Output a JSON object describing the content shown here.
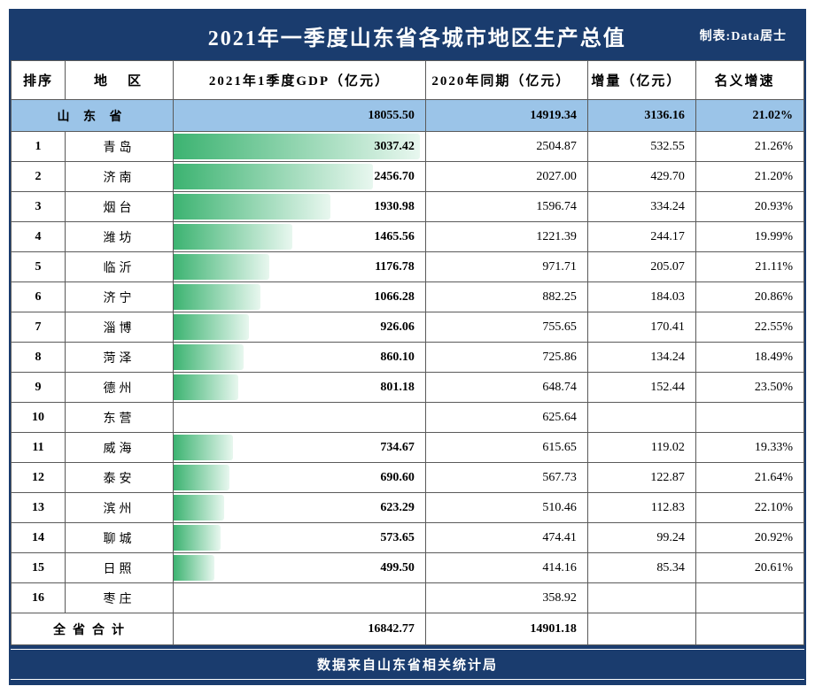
{
  "title": "2021年一季度山东省各城市地区生产总值",
  "credit": "制表:Data居士",
  "headers": {
    "rank": "排序",
    "region": "地　区",
    "gdp2021": "2021年1季度GDP（亿元）",
    "gdp2020": "2020年同期（亿元）",
    "increment": "增量（亿元）",
    "rate": "名义增速"
  },
  "province_row": {
    "region": "山 东 省",
    "gdp2021": "18055.50",
    "gdp2020": "14919.34",
    "increment": "3136.16",
    "rate": "21.02%"
  },
  "max_bar_value": 3100,
  "bar_gradient": {
    "from": "#3cb371",
    "to": "#e8f7ef"
  },
  "rows": [
    {
      "rank": "1",
      "region": "青岛",
      "gdp2021": "3037.42",
      "gdp2021_num": 3037.42,
      "gdp2020": "2504.87",
      "increment": "532.55",
      "rate": "21.26%"
    },
    {
      "rank": "2",
      "region": "济南",
      "gdp2021": "2456.70",
      "gdp2021_num": 2456.7,
      "gdp2020": "2027.00",
      "increment": "429.70",
      "rate": "21.20%"
    },
    {
      "rank": "3",
      "region": "烟台",
      "gdp2021": "1930.98",
      "gdp2021_num": 1930.98,
      "gdp2020": "1596.74",
      "increment": "334.24",
      "rate": "20.93%"
    },
    {
      "rank": "4",
      "region": "潍坊",
      "gdp2021": "1465.56",
      "gdp2021_num": 1465.56,
      "gdp2020": "1221.39",
      "increment": "244.17",
      "rate": "19.99%"
    },
    {
      "rank": "5",
      "region": "临沂",
      "gdp2021": "1176.78",
      "gdp2021_num": 1176.78,
      "gdp2020": "971.71",
      "increment": "205.07",
      "rate": "21.11%"
    },
    {
      "rank": "6",
      "region": "济宁",
      "gdp2021": "1066.28",
      "gdp2021_num": 1066.28,
      "gdp2020": "882.25",
      "increment": "184.03",
      "rate": "20.86%"
    },
    {
      "rank": "7",
      "region": "淄博",
      "gdp2021": "926.06",
      "gdp2021_num": 926.06,
      "gdp2020": "755.65",
      "increment": "170.41",
      "rate": "22.55%"
    },
    {
      "rank": "8",
      "region": "菏泽",
      "gdp2021": "860.10",
      "gdp2021_num": 860.1,
      "gdp2020": "725.86",
      "increment": "134.24",
      "rate": "18.49%"
    },
    {
      "rank": "9",
      "region": "德州",
      "gdp2021": "801.18",
      "gdp2021_num": 801.18,
      "gdp2020": "648.74",
      "increment": "152.44",
      "rate": "23.50%"
    },
    {
      "rank": "10",
      "region": "东营",
      "gdp2021": "",
      "gdp2021_num": null,
      "gdp2020": "625.64",
      "increment": "",
      "rate": ""
    },
    {
      "rank": "11",
      "region": "威海",
      "gdp2021": "734.67",
      "gdp2021_num": 734.67,
      "gdp2020": "615.65",
      "increment": "119.02",
      "rate": "19.33%"
    },
    {
      "rank": "12",
      "region": "泰安",
      "gdp2021": "690.60",
      "gdp2021_num": 690.6,
      "gdp2020": "567.73",
      "increment": "122.87",
      "rate": "21.64%"
    },
    {
      "rank": "13",
      "region": "滨州",
      "gdp2021": "623.29",
      "gdp2021_num": 623.29,
      "gdp2020": "510.46",
      "increment": "112.83",
      "rate": "22.10%"
    },
    {
      "rank": "14",
      "region": "聊城",
      "gdp2021": "573.65",
      "gdp2021_num": 573.65,
      "gdp2020": "474.41",
      "increment": "99.24",
      "rate": "20.92%"
    },
    {
      "rank": "15",
      "region": "日照",
      "gdp2021": "499.50",
      "gdp2021_num": 499.5,
      "gdp2020": "414.16",
      "increment": "85.34",
      "rate": "20.61%"
    },
    {
      "rank": "16",
      "region": "枣庄",
      "gdp2021": "",
      "gdp2021_num": null,
      "gdp2020": "358.92",
      "increment": "",
      "rate": ""
    }
  ],
  "sum_row": {
    "label": "全省合计",
    "gdp2021": "16842.77",
    "gdp2020": "14901.18"
  },
  "footer": "数据来自山东省相关统计局",
  "colors": {
    "header_bg": "#1a3c6e",
    "province_row_bg": "#9bc4e8",
    "border": "#5a5a5a",
    "text": "#000000",
    "title_text": "#ffffff"
  }
}
